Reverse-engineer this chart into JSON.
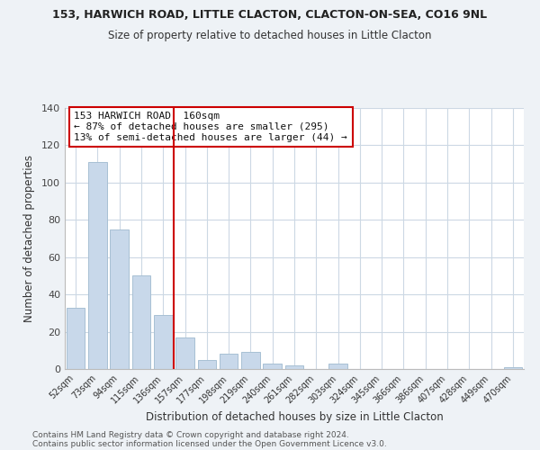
{
  "title": "153, HARWICH ROAD, LITTLE CLACTON, CLACTON-ON-SEA, CO16 9NL",
  "subtitle": "Size of property relative to detached houses in Little Clacton",
  "xlabel": "Distribution of detached houses by size in Little Clacton",
  "ylabel": "Number of detached properties",
  "bar_color": "#c8d8ea",
  "bar_edge_color": "#a8c0d4",
  "categories": [
    "52sqm",
    "73sqm",
    "94sqm",
    "115sqm",
    "136sqm",
    "157sqm",
    "177sqm",
    "198sqm",
    "219sqm",
    "240sqm",
    "261sqm",
    "282sqm",
    "303sqm",
    "324sqm",
    "345sqm",
    "366sqm",
    "386sqm",
    "407sqm",
    "428sqm",
    "449sqm",
    "470sqm"
  ],
  "values": [
    33,
    111,
    75,
    50,
    29,
    17,
    5,
    8,
    9,
    3,
    2,
    0,
    3,
    0,
    0,
    0,
    0,
    0,
    0,
    0,
    1
  ],
  "vline_color": "#cc0000",
  "annotation_line1": "153 HARWICH ROAD: 160sqm",
  "annotation_line2": "← 87% of detached houses are smaller (295)",
  "annotation_line3": "13% of semi-detached houses are larger (44) →",
  "annotation_box_color": "#ffffff",
  "annotation_box_edge": "#cc0000",
  "ylim": [
    0,
    140
  ],
  "yticks": [
    0,
    20,
    40,
    60,
    80,
    100,
    120,
    140
  ],
  "footer1": "Contains HM Land Registry data © Crown copyright and database right 2024.",
  "footer2": "Contains public sector information licensed under the Open Government Licence v3.0.",
  "background_color": "#eef2f6",
  "plot_background": "#ffffff",
  "grid_color": "#ccd8e4"
}
